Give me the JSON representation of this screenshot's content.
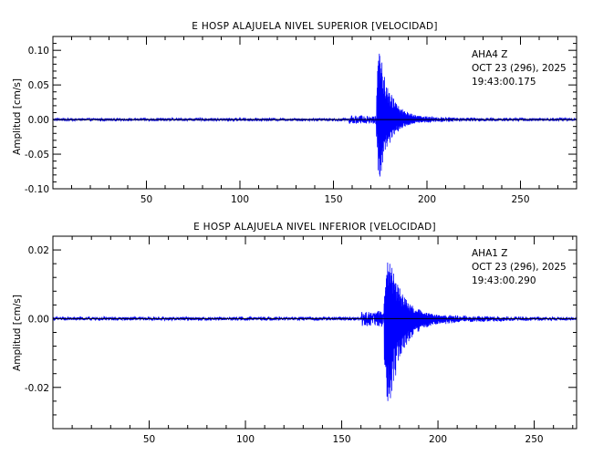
{
  "chart_data": [
    {
      "type": "line",
      "title": "E HOSP ALAJUELA NIVEL SUPERIOR [VELOCIDAD]",
      "xlabel": "",
      "ylabel": "Amplitud [cm/s]",
      "xlim": [
        0,
        280
      ],
      "ylim": [
        -0.1,
        0.12
      ],
      "xticks": [
        50,
        100,
        150,
        200,
        250
      ],
      "xtick_labels": [
        "50",
        "100",
        "150",
        "200",
        "250"
      ],
      "yticks": [
        -0.1,
        -0.05,
        0.0,
        0.05,
        0.1
      ],
      "ytick_labels": [
        "-0.10",
        "-0.05",
        "0.00",
        "0.05",
        "0.10"
      ],
      "annotation": [
        "AHA4   Z",
        "OCT 23 (296), 2025",
        "19:43:00.175"
      ],
      "series": [
        {
          "color": "#0000ff",
          "x_range": [
            0,
            280
          ],
          "noise_amplitude": 0.002,
          "precursor": {
            "start": 158,
            "end": 173,
            "amplitude": 0.006
          },
          "event": {
            "onset": 173,
            "peak_time": 174.3,
            "peak_max": 0.113,
            "peak_min": -0.093,
            "decay_seconds": 12
          }
        }
      ]
    },
    {
      "type": "line",
      "title": "E HOSP ALAJUELA NIVEL INFERIOR [VELOCIDAD]",
      "xlabel": "",
      "ylabel": "Amplitud [cm/s]",
      "xlim": [
        0,
        272
      ],
      "ylim": [
        -0.032,
        0.024
      ],
      "xticks": [
        50,
        100,
        150,
        200,
        250
      ],
      "xtick_labels": [
        "50",
        "100",
        "150",
        "200",
        "250"
      ],
      "yticks": [
        -0.02,
        0.0,
        0.02
      ],
      "ytick_labels": [
        "-0.02",
        "0.00",
        "0.02"
      ],
      "annotation": [
        "AHA1   Z",
        "OCT 23 (296), 2025",
        "19:43:00.290"
      ],
      "series": [
        {
          "color": "#0000ff",
          "x_range": [
            0,
            272
          ],
          "noise_amplitude": 0.0005,
          "precursor": {
            "start": 160,
            "end": 172,
            "amplitude": 0.0022
          },
          "event": {
            "onset": 172,
            "peak_time": 173.5,
            "peak_max": 0.022,
            "peak_min": -0.031,
            "decay_seconds": 15
          }
        }
      ]
    }
  ]
}
